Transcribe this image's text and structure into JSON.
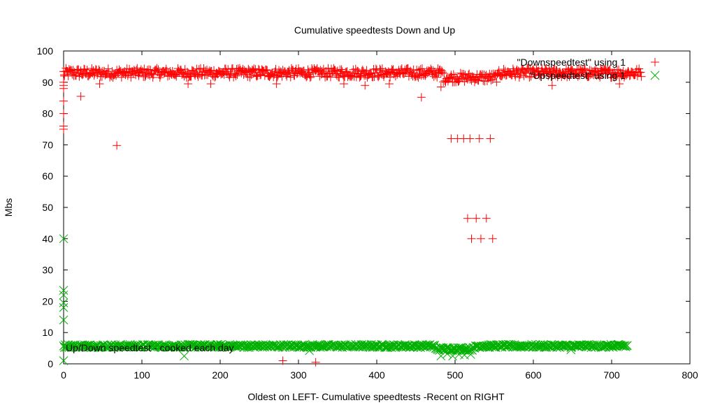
{
  "chart_data": {
    "type": "scatter",
    "title": "Cumulative speedtests Down and Up",
    "xlabel": "Oldest on LEFT- Cumulative speedtests -Recent on RIGHT",
    "ylabel": "Mbs",
    "xlim": [
      0,
      800
    ],
    "ylim": [
      0,
      100
    ],
    "x_ticks": [
      "0",
      "100",
      "200",
      "300",
      "400",
      "500",
      "600",
      "700",
      "800"
    ],
    "y_ticks": [
      "0",
      "10",
      "20",
      "30",
      "40",
      "50",
      "60",
      "70",
      "80",
      "90",
      "100"
    ],
    "grid": false,
    "legend_position": "top-right",
    "overlaid_text": "Up/Down speedtest - cooked each day",
    "series": [
      {
        "name": "\"Downspeedtest\" using 1",
        "marker": "plus",
        "color": "#ff0000",
        "baseline": {
          "x_start": 0,
          "x_end": 738,
          "mean": 93,
          "spread": 1.5,
          "dip_range": [
            485,
            555
          ],
          "dip_mean": 91.5
        },
        "outliers": [
          {
            "x": 0,
            "y": 76
          },
          {
            "x": 0,
            "y": 75
          },
          {
            "x": 0,
            "y": 80
          },
          {
            "x": 0,
            "y": 84
          },
          {
            "x": 0,
            "y": 88
          },
          {
            "x": 0,
            "y": 89
          },
          {
            "x": 0,
            "y": 90
          },
          {
            "x": 1,
            "y": 92
          },
          {
            "x": 22,
            "y": 85.5
          },
          {
            "x": 46,
            "y": 89.5
          },
          {
            "x": 68,
            "y": 69.8
          },
          {
            "x": 159,
            "y": 89.5
          },
          {
            "x": 188,
            "y": 89.5
          },
          {
            "x": 272,
            "y": 89.5
          },
          {
            "x": 280,
            "y": 1
          },
          {
            "x": 322,
            "y": 0.5
          },
          {
            "x": 358,
            "y": 89.5
          },
          {
            "x": 385,
            "y": 89
          },
          {
            "x": 416,
            "y": 89.5
          },
          {
            "x": 457,
            "y": 85.2
          },
          {
            "x": 482,
            "y": 88.5
          },
          {
            "x": 495,
            "y": 72
          },
          {
            "x": 503,
            "y": 72
          },
          {
            "x": 511,
            "y": 72
          },
          {
            "x": 519,
            "y": 72
          },
          {
            "x": 531,
            "y": 72
          },
          {
            "x": 545,
            "y": 72
          },
          {
            "x": 516,
            "y": 46.5
          },
          {
            "x": 527,
            "y": 46.5
          },
          {
            "x": 540,
            "y": 46.5
          },
          {
            "x": 521,
            "y": 40
          },
          {
            "x": 533,
            "y": 40
          },
          {
            "x": 548,
            "y": 40
          },
          {
            "x": 624,
            "y": 89
          },
          {
            "x": 710,
            "y": 89.5
          }
        ]
      },
      {
        "name": "\"Upspeedtest\" using 1",
        "marker": "cross",
        "color": "#00b000",
        "baseline": {
          "x_start": 0,
          "x_end": 720,
          "mean": 5.7,
          "spread": 0.5,
          "dip_range": [
            475,
            525
          ],
          "dip_mean": 4.8
        },
        "outliers": [
          {
            "x": 0,
            "y": 40
          },
          {
            "x": 0,
            "y": 23.5
          },
          {
            "x": 0,
            "y": 22
          },
          {
            "x": 0,
            "y": 19.5
          },
          {
            "x": 0,
            "y": 18
          },
          {
            "x": 0,
            "y": 14
          },
          {
            "x": 0,
            "y": 1
          },
          {
            "x": 154,
            "y": 2.5
          },
          {
            "x": 314,
            "y": 4.2
          },
          {
            "x": 482,
            "y": 2.5
          },
          {
            "x": 490,
            "y": 3.2
          },
          {
            "x": 497,
            "y": 2.5
          },
          {
            "x": 505,
            "y": 3
          },
          {
            "x": 512,
            "y": 2.8
          },
          {
            "x": 520,
            "y": 3
          },
          {
            "x": 648,
            "y": 4.5
          }
        ]
      }
    ]
  }
}
